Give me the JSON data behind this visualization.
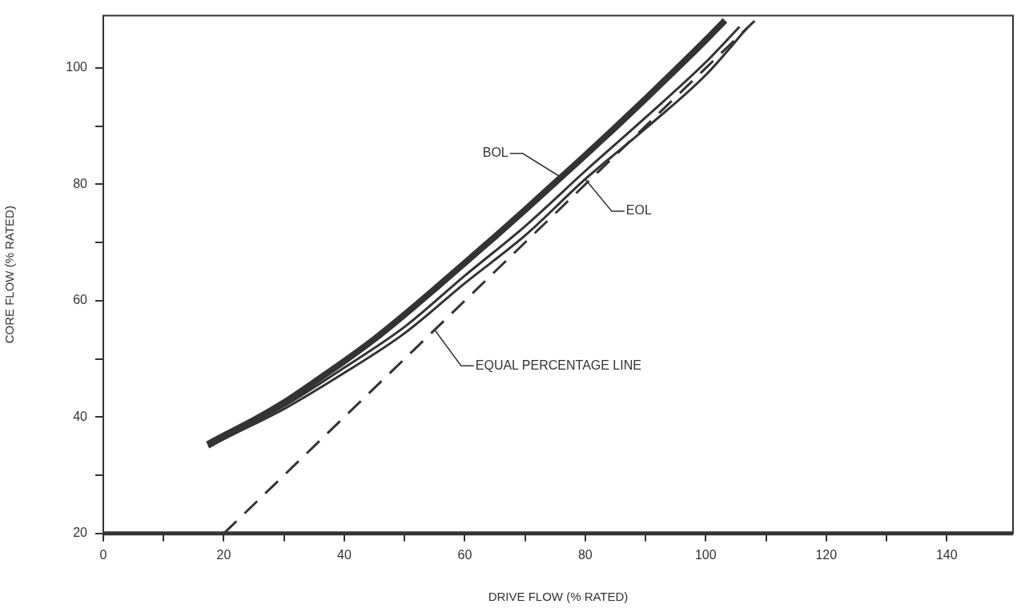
{
  "chart_data": {
    "type": "line",
    "xlabel": "DRIVE FLOW (% RATED)",
    "ylabel": "CORE FLOW (% RATED)",
    "xlim": [
      0,
      151
    ],
    "ylim": [
      20,
      109
    ],
    "xticks": [
      0,
      {
        "value": 10,
        "label": null
      },
      20,
      {
        "value": 30,
        "label": null
      },
      40,
      {
        "value": 50,
        "label": null
      },
      60,
      {
        "value": 70,
        "label": null
      },
      80,
      {
        "value": 90,
        "label": null
      },
      100,
      {
        "value": 110,
        "label": null
      },
      120,
      {
        "value": 130,
        "label": null
      },
      140
    ],
    "yticks": [
      20,
      {
        "value": 30,
        "label": null
      },
      40,
      {
        "value": 50,
        "label": null
      },
      60,
      {
        "value": 70,
        "label": null
      },
      80,
      {
        "value": 90,
        "label": null
      },
      100
    ],
    "grid": false,
    "legend": false,
    "marker": "none",
    "series": [
      {
        "color": "#333333",
        "x": [
          17.3,
          20,
          25,
          30,
          35,
          40,
          45,
          50,
          55,
          60,
          65,
          70,
          75,
          80,
          85,
          90,
          95,
          100,
          103.2
        ],
        "values": [
          35.3,
          36.8,
          39.5,
          42.5,
          46,
          49.6,
          53.4,
          57.6,
          62,
          66.5,
          71,
          75.6,
          80.3,
          85,
          89.8,
          94.7,
          99.7,
          104.8,
          108.2
        ]
      },
      {
        "color": "#333333",
        "x": [
          17.4,
          20,
          30,
          40,
          50,
          60,
          70,
          80,
          90,
          100,
          105.6
        ],
        "values": [
          35,
          36.5,
          41.9,
          48.5,
          55.5,
          64.3,
          72.8,
          82.3,
          91.5,
          101,
          107.1
        ]
      },
      {
        "color": "#333333",
        "x": [
          17.5,
          20,
          30,
          40,
          50,
          60,
          70,
          80,
          90,
          100,
          106.8
        ],
        "values": [
          34.8,
          36.2,
          41.4,
          47.6,
          54.4,
          63,
          71.2,
          80.9,
          89.6,
          98.8,
          106.8
        ]
      },
      {
        "color": "#333333",
        "x": [
          20,
          108.4
        ],
        "values": [
          20,
          108.4
        ],
        "line_style": "dashed"
      }
    ],
    "annotations": [
      {
        "text": "BOL",
        "x": 76,
        "y": 81.2
      },
      {
        "text": "EOL",
        "x": 80,
        "y": 80.9
      },
      {
        "text": "EQUAL PERCENTAGE LINE",
        "x": 55,
        "y": 55
      }
    ]
  }
}
